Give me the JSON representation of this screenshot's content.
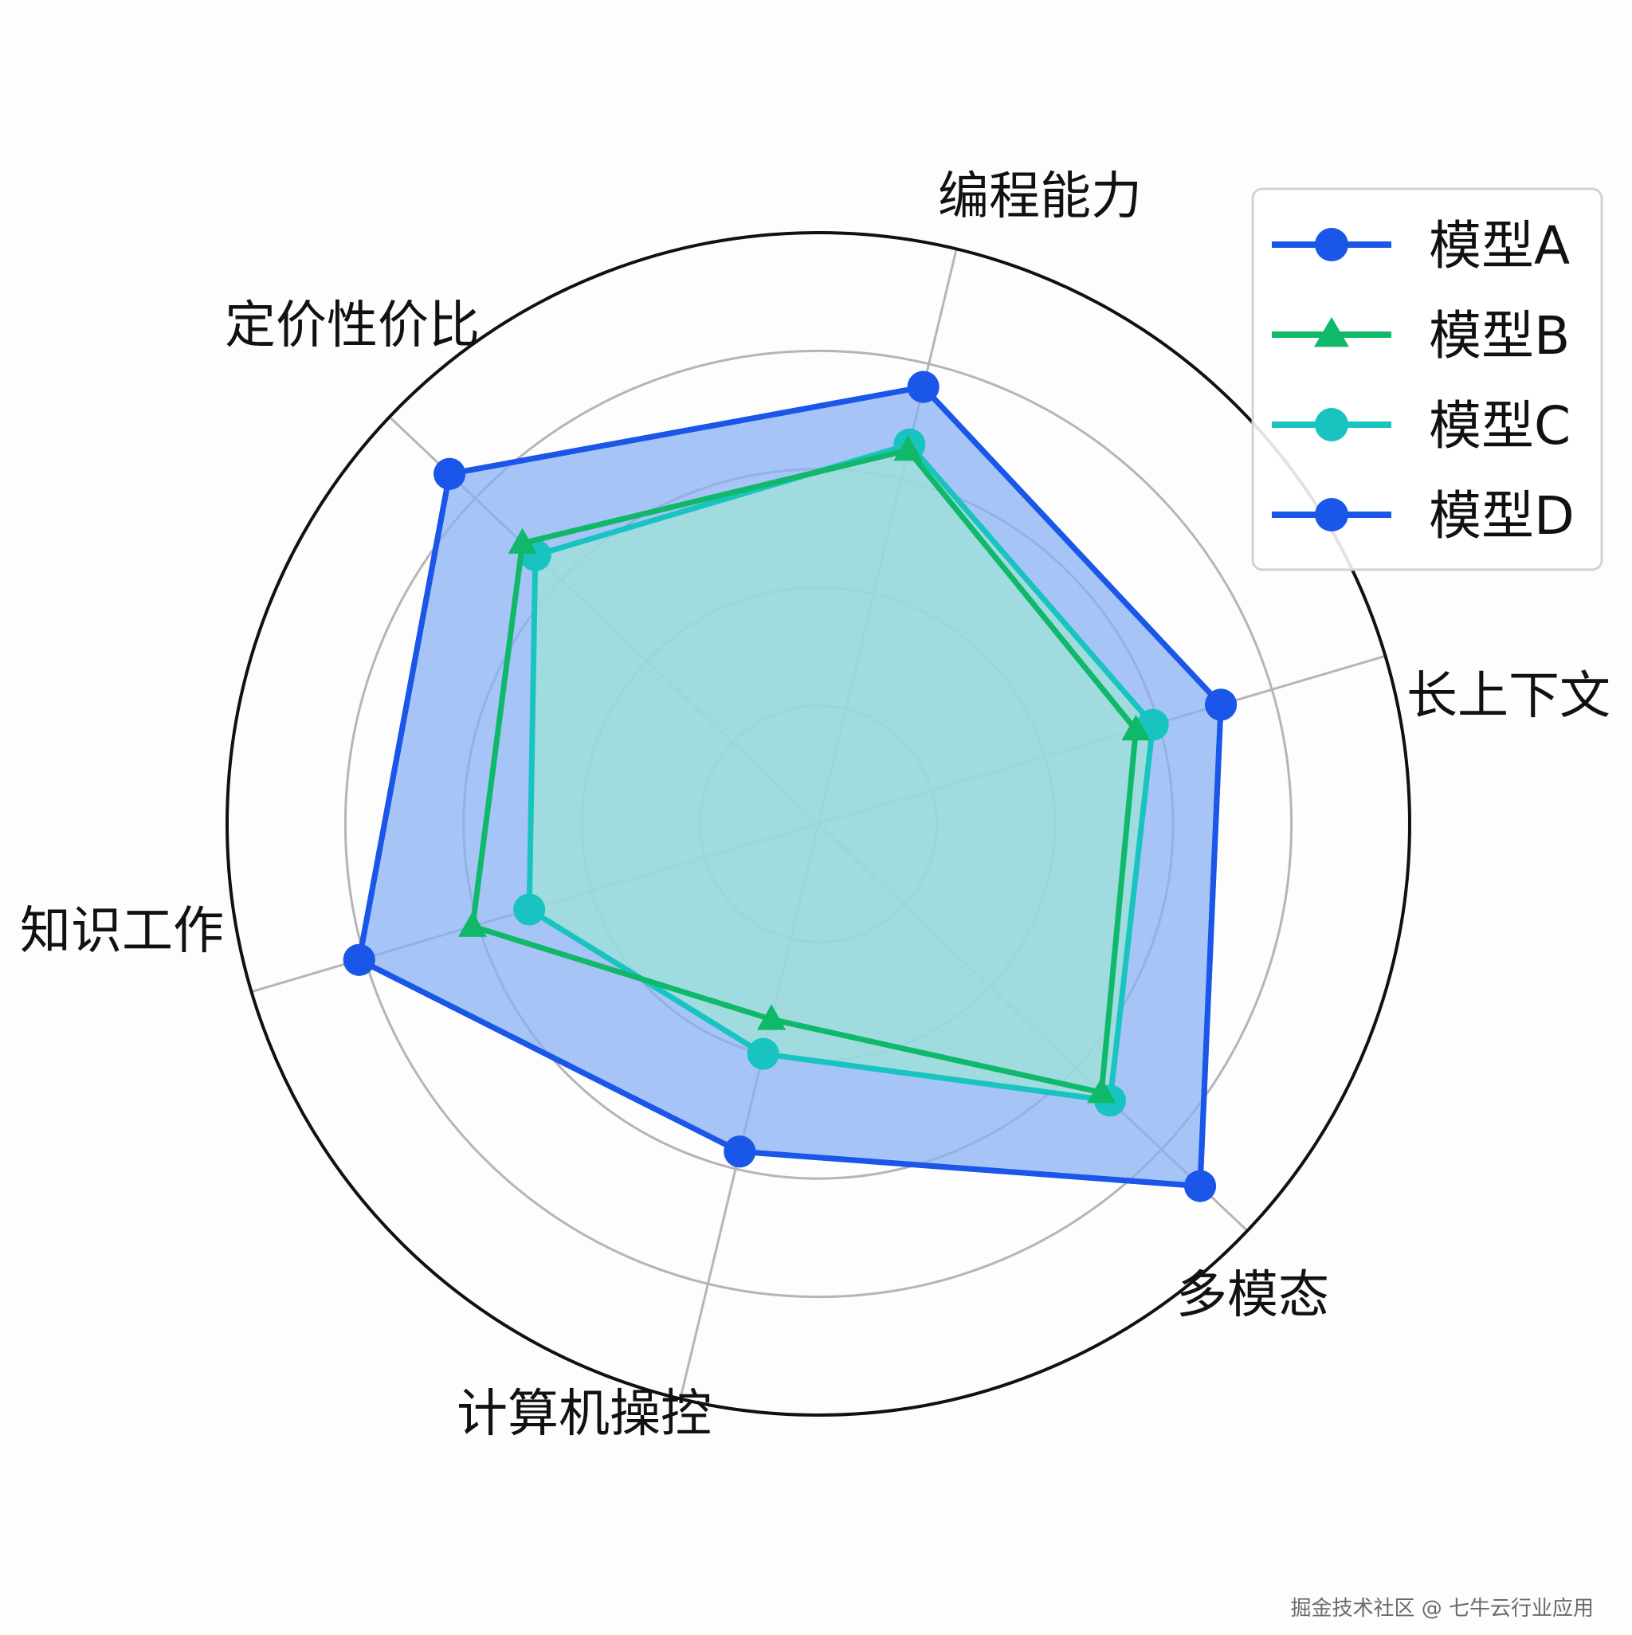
{
  "chart_data": {
    "type": "radar",
    "categories": [
      "编程能力",
      "长上下文",
      "多模态",
      "计算机操控",
      "知识工作",
      "定价性价比"
    ],
    "rlim": [
      0,
      10
    ],
    "radial_grid": [
      2,
      4,
      6,
      8,
      10
    ],
    "grid": true,
    "legend_position": "top-right",
    "series": [
      {
        "name": "模型A",
        "values": [
          7.6,
          7.1,
          8.9,
          5.7,
          8.1,
          8.6
        ],
        "color": "#1a56e8",
        "marker": "circle",
        "fill": "#8ab0f4"
      },
      {
        "name": "模型B",
        "values": [
          6.5,
          5.6,
          6.6,
          3.4,
          6.1,
          6.9
        ],
        "color": "#10b86a",
        "marker": "triangle",
        "fill": ""
      },
      {
        "name": "模型C",
        "values": [
          6.6,
          5.9,
          6.8,
          4.0,
          5.1,
          6.6
        ],
        "color": "#19c4c0",
        "marker": "circle",
        "fill": "#9ee3d7"
      },
      {
        "name": "模型D",
        "values": [
          7.6,
          7.1,
          8.9,
          5.7,
          8.1,
          8.6
        ],
        "color": "#1a56e8",
        "marker": "circle",
        "fill": ""
      }
    ]
  },
  "watermark": "掘金技术社区 @ 七牛云行业应用"
}
